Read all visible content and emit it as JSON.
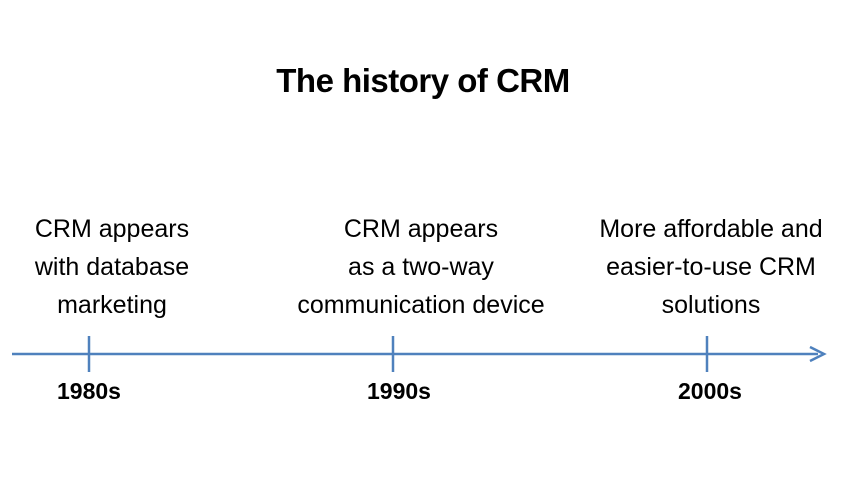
{
  "title": "The history of CRM",
  "colors": {
    "axis": "#4f81bd",
    "text": "#000000",
    "background": "#ffffff"
  },
  "timeline": [
    {
      "year": "1980s",
      "description": [
        "CRM appears",
        "with database",
        "marketing"
      ]
    },
    {
      "year": "1990s",
      "description": [
        "CRM appears",
        "as a two-way",
        "communication device"
      ]
    },
    {
      "year": "2000s",
      "description": [
        "More affordable and",
        "easier-to-use CRM",
        "solutions"
      ]
    }
  ]
}
